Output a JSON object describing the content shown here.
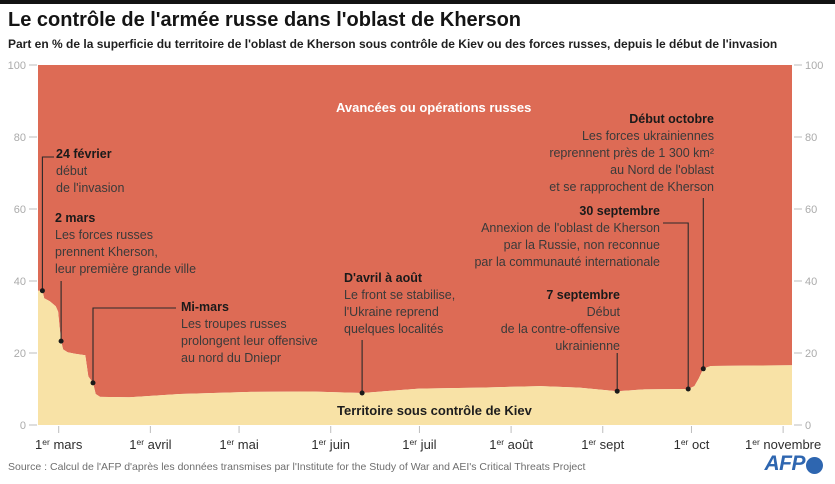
{
  "header": {
    "title": "Le contrôle de l'armée russe dans l'oblast de Kherson",
    "subtitle": "Part en % de la superficie du territoire de l'oblast de Kherson sous contrôle de Kiev ou des forces russes, depuis le début de l'invasion"
  },
  "chart_data": {
    "type": "area",
    "stacked": true,
    "title": "Le contrôle de l'armée russe dans l'oblast de Kherson",
    "ylabel": "%",
    "ylim": [
      0,
      100
    ],
    "yticks": [
      0,
      20,
      40,
      60,
      80,
      100
    ],
    "yticks_shown_both_sides": true,
    "domain_days": 255,
    "xticks": [
      {
        "d": 7,
        "day": "1",
        "sup": "er",
        "month": "mars"
      },
      {
        "d": 38,
        "day": "1",
        "sup": "er",
        "month": "avril"
      },
      {
        "d": 68,
        "day": "1",
        "sup": "er",
        "month": "mai"
      },
      {
        "d": 99,
        "day": "1",
        "sup": "er",
        "month": "juin"
      },
      {
        "d": 129,
        "day": "1",
        "sup": "er",
        "month": "juil"
      },
      {
        "d": 160,
        "day": "1",
        "sup": "er",
        "month": "août"
      },
      {
        "d": 191,
        "day": "1",
        "sup": "er",
        "month": "sept"
      },
      {
        "d": 221,
        "day": "1",
        "sup": "er",
        "month": "oct"
      },
      {
        "d": 252,
        "day": "1",
        "sup": "er",
        "month": "novembre"
      }
    ],
    "series": [
      {
        "name": "Avancées ou opérations russes",
        "role": "russian-controlled",
        "color": "#dd6b55"
      },
      {
        "name": "Territoire sous contrôle de Kiev",
        "role": "kiev-controlled",
        "color": "#f8e2a6",
        "points": [
          [
            0,
            37.3
          ],
          [
            1.5,
            37.3
          ],
          [
            2.1,
            35.2
          ],
          [
            4,
            34.4
          ],
          [
            6,
            33
          ],
          [
            6.8,
            31.5
          ],
          [
            7.2,
            28
          ],
          [
            7.8,
            23.3
          ],
          [
            8.5,
            21
          ],
          [
            10,
            20.2
          ],
          [
            12.5,
            19.8
          ],
          [
            16,
            19.4
          ],
          [
            17,
            13.5
          ],
          [
            18.6,
            11.7
          ],
          [
            19.5,
            8.6
          ],
          [
            21,
            7.8
          ],
          [
            31,
            7.7
          ],
          [
            48,
            8.6
          ],
          [
            72,
            9.2
          ],
          [
            92,
            9.3
          ],
          [
            109.6,
            8.9
          ],
          [
            129,
            10.1
          ],
          [
            150,
            10.4
          ],
          [
            170,
            10.8
          ],
          [
            183,
            10.4
          ],
          [
            195.9,
            9.4
          ],
          [
            205,
            9.9
          ],
          [
            219.9,
            10
          ],
          [
            222,
            10.8
          ],
          [
            223.5,
            13
          ],
          [
            225,
            15.6
          ],
          [
            227.5,
            16.4
          ],
          [
            240,
            16.5
          ],
          [
            255,
            16.6
          ]
        ]
      }
    ],
    "area_labels": {
      "russians": "Avancées ou opérations russes",
      "kiev": "Territoire sous contrôle de Kiev"
    },
    "annotations": [
      {
        "id": "fev24",
        "title": "24 février",
        "lines": [
          "début",
          "de l'invasion"
        ],
        "dot": [
          1.5,
          37.3
        ]
      },
      {
        "id": "mars2",
        "title": "2 mars",
        "lines": [
          "Les forces russes",
          "prennent Kherson,",
          "leur première grande ville"
        ],
        "dot": [
          7.8,
          23.3
        ]
      },
      {
        "id": "mimars",
        "title": "Mi-mars",
        "lines": [
          "Les troupes russes",
          "prolongent leur offensive",
          "au nord du Dniepr"
        ],
        "dot": [
          18.6,
          11.7
        ]
      },
      {
        "id": "avril",
        "title": "D'avril à août",
        "lines": [
          "Le front se stabilise,",
          "l'Ukraine reprend",
          "quelques localités"
        ],
        "dot": [
          109.6,
          8.9
        ]
      },
      {
        "id": "sept7",
        "title": "7 septembre",
        "lines": [
          "Début",
          "de la contre-offensive",
          "ukrainienne"
        ],
        "dot": [
          195.9,
          9.4
        ]
      },
      {
        "id": "sept30",
        "title": "30 septembre",
        "lines": [
          "Annexion de l'oblast de Kherson",
          "par la Russie, non reconnue",
          "par la communauté internationale"
        ],
        "dot": [
          219.9,
          10
        ]
      },
      {
        "id": "oct",
        "title": "Début octobre",
        "lines": [
          "Les forces ukrainiennes",
          "reprennent près de 1 300 km²",
          "au Nord de l'oblast",
          "et se rapprochent de Kherson"
        ],
        "dot": [
          225,
          15.6
        ]
      }
    ]
  },
  "footer": {
    "source": "Source : Calcul de l'AFP d'après les données transmises par l'Institute for the Study of War and AEI's Critical Threats Project",
    "logo": "AFP"
  }
}
